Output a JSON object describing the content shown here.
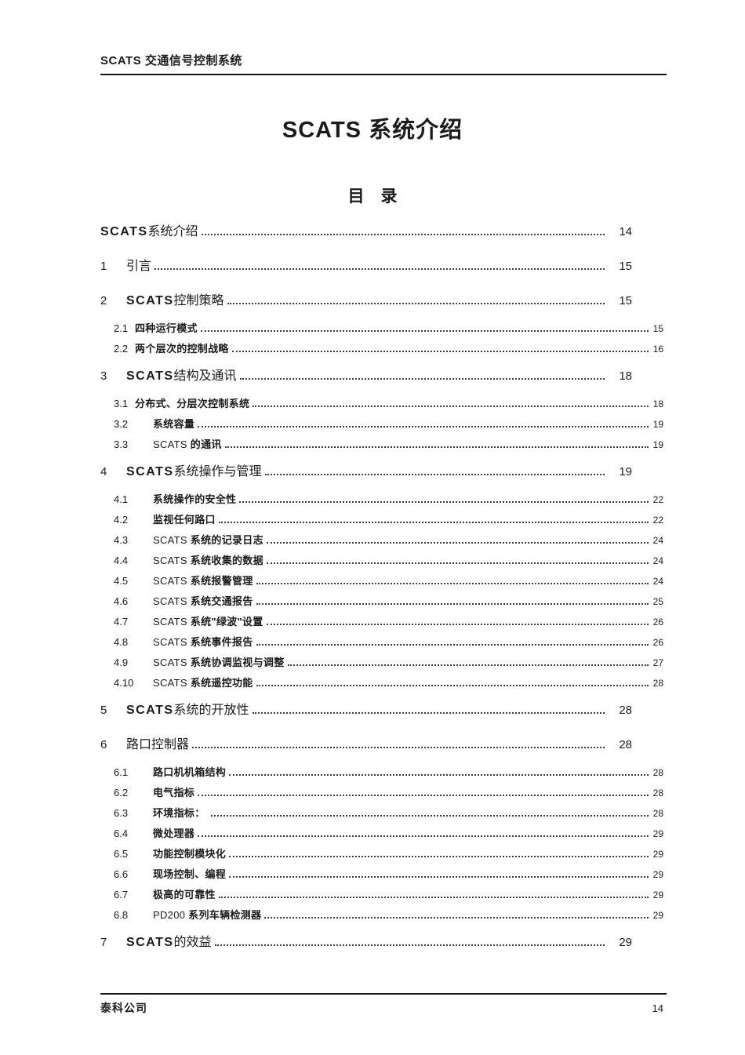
{
  "colors": {
    "ink": "#1b1b1b",
    "paper": "#ffffff"
  },
  "header": {
    "title": "SCATS 交通信号控制系统"
  },
  "document": {
    "title": "SCATS 系统介绍",
    "toc_heading": "目　录"
  },
  "toc": {
    "entries": [
      {
        "level": 1,
        "num": "",
        "page": "14",
        "segments": [
          {
            "t": "SCATS",
            "b": true
          },
          {
            "t": "系统介绍",
            "b": false
          }
        ]
      },
      {
        "level": 1,
        "num": "1",
        "page": "15",
        "segments": [
          {
            "t": "引言",
            "b": false
          }
        ]
      },
      {
        "level": 1,
        "num": "2",
        "page": "15",
        "segments": [
          {
            "t": "SCATS",
            "b": true
          },
          {
            "t": "控制策略",
            "b": false
          }
        ]
      },
      {
        "level": 2,
        "gap": "narrow",
        "num": "2.1",
        "page": "15",
        "segments": [
          {
            "t": "四种运行模式",
            "b": true
          }
        ]
      },
      {
        "level": 2,
        "gap": "narrow",
        "num": "2.2",
        "page": "16",
        "segments": [
          {
            "t": "两个层次的控制战略",
            "b": true
          }
        ]
      },
      {
        "level": 1,
        "num": "3",
        "page": "18",
        "segments": [
          {
            "t": "SCATS",
            "b": true
          },
          {
            "t": "结构及通讯",
            "b": false
          }
        ]
      },
      {
        "level": 2,
        "gap": "narrow",
        "num": "3.1",
        "page": "18",
        "segments": [
          {
            "t": "分布式、分层次控制系统",
            "b": true
          }
        ]
      },
      {
        "level": 2,
        "gap": "wide",
        "num": "3.2",
        "page": "19",
        "segments": [
          {
            "t": "系统容量",
            "b": true
          }
        ]
      },
      {
        "level": 2,
        "gap": "wide",
        "num": "3.3",
        "page": "19",
        "segments": [
          {
            "t": "SCATS ",
            "b": false
          },
          {
            "t": "的通讯",
            "b": true
          }
        ]
      },
      {
        "level": 1,
        "num": "4",
        "page": "19",
        "segments": [
          {
            "t": "SCATS",
            "b": true
          },
          {
            "t": "系统操作与管理",
            "b": false
          }
        ]
      },
      {
        "level": 2,
        "gap": "wide",
        "num": "4.1",
        "page": "22",
        "segments": [
          {
            "t": "系统操作的安全性",
            "b": true
          }
        ]
      },
      {
        "level": 2,
        "gap": "wide",
        "num": "4.2",
        "page": "22",
        "segments": [
          {
            "t": "监视任何路口",
            "b": true
          }
        ]
      },
      {
        "level": 2,
        "gap": "wide",
        "num": "4.3",
        "page": "24",
        "segments": [
          {
            "t": "SCATS ",
            "b": false
          },
          {
            "t": "系统的记录日志",
            "b": true
          }
        ]
      },
      {
        "level": 2,
        "gap": "wide",
        "num": "4.4",
        "page": "24",
        "segments": [
          {
            "t": "SCATS ",
            "b": false
          },
          {
            "t": "系统收集的数据",
            "b": true
          }
        ]
      },
      {
        "level": 2,
        "gap": "wide",
        "num": "4.5",
        "page": "24",
        "segments": [
          {
            "t": "SCATS ",
            "b": false
          },
          {
            "t": "系统报警管理",
            "b": true
          }
        ]
      },
      {
        "level": 2,
        "gap": "wide",
        "num": "4.6",
        "page": "25",
        "segments": [
          {
            "t": "SCATS ",
            "b": false
          },
          {
            "t": "系统交通报告",
            "b": true
          }
        ]
      },
      {
        "level": 2,
        "gap": "wide",
        "num": "4.7",
        "page": "26",
        "segments": [
          {
            "t": "SCATS ",
            "b": false
          },
          {
            "t": "系统\"绿波\"设置",
            "b": true
          }
        ]
      },
      {
        "level": 2,
        "gap": "wide",
        "num": "4.8",
        "page": "26",
        "segments": [
          {
            "t": "SCATS ",
            "b": false
          },
          {
            "t": "系统事件报告",
            "b": true
          }
        ]
      },
      {
        "level": 2,
        "gap": "wide",
        "num": "4.9",
        "page": "27",
        "segments": [
          {
            "t": "SCATS ",
            "b": false
          },
          {
            "t": "系统协调监视与调整",
            "b": true
          }
        ]
      },
      {
        "level": 2,
        "gap": "wide",
        "num": "4.10",
        "page": "28",
        "segments": [
          {
            "t": "SCATS ",
            "b": false
          },
          {
            "t": "系统遥控功能",
            "b": true
          }
        ]
      },
      {
        "level": 1,
        "num": "5",
        "page": "28",
        "segments": [
          {
            "t": "SCATS",
            "b": true
          },
          {
            "t": "系统的开放性",
            "b": false
          }
        ]
      },
      {
        "level": 1,
        "num": "6",
        "page": "28",
        "segments": [
          {
            "t": "路口控制器",
            "b": false
          }
        ]
      },
      {
        "level": 2,
        "gap": "wide",
        "num": "6.1",
        "page": "28",
        "segments": [
          {
            "t": "路口机机箱结构",
            "b": true
          }
        ]
      },
      {
        "level": 2,
        "gap": "wide",
        "num": "6.2",
        "page": "28",
        "segments": [
          {
            "t": "电气指标",
            "b": true
          }
        ]
      },
      {
        "level": 2,
        "gap": "wide",
        "num": "6.3",
        "page": "28",
        "segments": [
          {
            "t": "环境指标： ",
            "b": true
          }
        ]
      },
      {
        "level": 2,
        "gap": "wide",
        "num": "6.4",
        "page": "29",
        "segments": [
          {
            "t": "微处理器",
            "b": true
          }
        ]
      },
      {
        "level": 2,
        "gap": "wide",
        "num": "6.5",
        "page": "29",
        "segments": [
          {
            "t": "功能控制模块化",
            "b": true
          }
        ]
      },
      {
        "level": 2,
        "gap": "wide",
        "num": "6.6",
        "page": "29",
        "segments": [
          {
            "t": "现场控制、编程",
            "b": true
          }
        ]
      },
      {
        "level": 2,
        "gap": "wide",
        "num": "6.7",
        "page": "29",
        "segments": [
          {
            "t": "极高的可靠性",
            "b": true
          }
        ]
      },
      {
        "level": 2,
        "gap": "wide",
        "num": "6.8",
        "page": "29",
        "segments": [
          {
            "t": "PD200 ",
            "b": false
          },
          {
            "t": "系列车辆检测器",
            "b": true
          }
        ]
      },
      {
        "level": 1,
        "num": "7",
        "page": "29",
        "segments": [
          {
            "t": "SCATS",
            "b": true
          },
          {
            "t": "的效益",
            "b": false
          }
        ]
      }
    ]
  },
  "footer": {
    "company": "泰科公司",
    "page_number": "14"
  }
}
